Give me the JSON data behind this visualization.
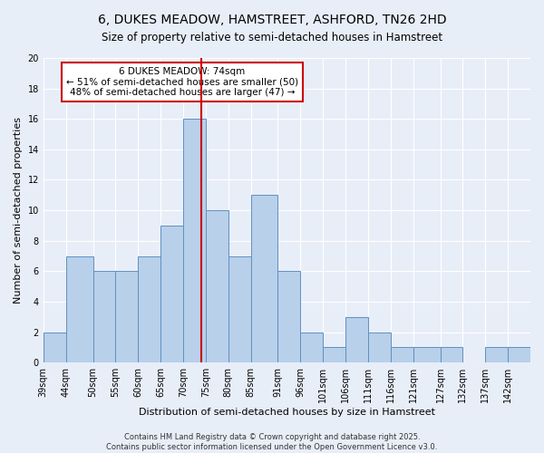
{
  "title": "6, DUKES MEADOW, HAMSTREET, ASHFORD, TN26 2HD",
  "subtitle": "Size of property relative to semi-detached houses in Hamstreet",
  "xlabel": "Distribution of semi-detached houses by size in Hamstreet",
  "ylabel": "Number of semi-detached properties",
  "bin_edges": [
    39,
    44,
    50,
    55,
    60,
    65,
    70,
    75,
    80,
    85,
    91,
    96,
    101,
    106,
    111,
    116,
    121,
    127,
    132,
    137,
    142,
    147
  ],
  "heights": [
    2,
    7,
    6,
    6,
    7,
    9,
    16,
    10,
    7,
    11,
    6,
    2,
    1,
    3,
    2,
    1,
    1,
    1,
    0,
    1,
    1
  ],
  "bar_color": "#b8d0ea",
  "bar_edge_color": "#6090c0",
  "background_color": "#e8eef8",
  "grid_color": "#ffffff",
  "vline_x": 74,
  "vline_color": "#cc0000",
  "annotation_title": "6 DUKES MEADOW: 74sqm",
  "annotation_line1": "← 51% of semi-detached houses are smaller (50)",
  "annotation_line2": "48% of semi-detached houses are larger (47) →",
  "annotation_box_color": "#ffffff",
  "annotation_box_edge": "#cc0000",
  "ylim": [
    0,
    20
  ],
  "yticks": [
    0,
    2,
    4,
    6,
    8,
    10,
    12,
    14,
    16,
    18,
    20
  ],
  "tick_labels": [
    "39sqm",
    "44sqm",
    "50sqm",
    "55sqm",
    "60sqm",
    "65sqm",
    "70sqm",
    "75sqm",
    "80sqm",
    "85sqm",
    "91sqm",
    "96sqm",
    "101sqm",
    "106sqm",
    "111sqm",
    "116sqm",
    "121sqm",
    "127sqm",
    "132sqm",
    "137sqm",
    "142sqm"
  ],
  "footer_line1": "Contains HM Land Registry data © Crown copyright and database right 2025.",
  "footer_line2": "Contains public sector information licensed under the Open Government Licence v3.0.",
  "title_fontsize": 10,
  "subtitle_fontsize": 8.5,
  "label_fontsize": 8,
  "tick_fontsize": 7,
  "annotation_fontsize": 7.5,
  "footer_fontsize": 6
}
